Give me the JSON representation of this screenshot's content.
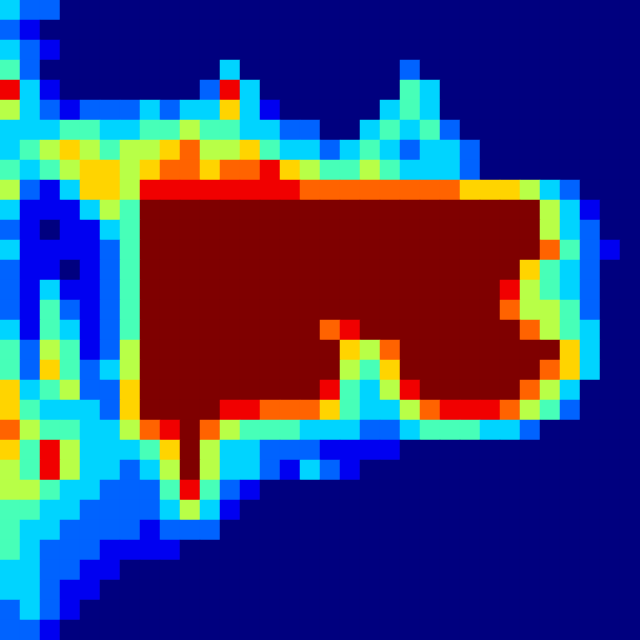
{
  "chart_data": {
    "type": "heatmap",
    "tick_labels": false,
    "color_range": [
      0,
      9
    ],
    "cells": [
      [
        3,
        2,
        2,
        0,
        0,
        0,
        0,
        0,
        0,
        0,
        0,
        0,
        0,
        0,
        0,
        0,
        0,
        0,
        0,
        0,
        0,
        0,
        0,
        0,
        0,
        0,
        0,
        0,
        0,
        0,
        0,
        0
      ],
      [
        2,
        1,
        0,
        0,
        0,
        0,
        0,
        0,
        0,
        0,
        0,
        0,
        0,
        0,
        0,
        0,
        0,
        0,
        0,
        0,
        0,
        0,
        0,
        0,
        0,
        0,
        0,
        0,
        0,
        0,
        0,
        0
      ],
      [
        3,
        2,
        1,
        0,
        0,
        0,
        0,
        0,
        0,
        0,
        0,
        0,
        0,
        0,
        0,
        0,
        0,
        0,
        0,
        0,
        0,
        0,
        0,
        0,
        0,
        0,
        0,
        0,
        0,
        0,
        0,
        0
      ],
      [
        4,
        2,
        0,
        0,
        0,
        0,
        0,
        0,
        0,
        0,
        0,
        3,
        0,
        0,
        0,
        0,
        0,
        0,
        0,
        0,
        2,
        0,
        0,
        0,
        0,
        0,
        0,
        0,
        0,
        0,
        0,
        0
      ],
      [
        8,
        3,
        1,
        0,
        0,
        0,
        0,
        0,
        0,
        0,
        2,
        8,
        3,
        0,
        0,
        0,
        0,
        0,
        0,
        0,
        4,
        3,
        0,
        0,
        0,
        0,
        0,
        0,
        0,
        0,
        0,
        0
      ],
      [
        5,
        3,
        2,
        1,
        2,
        2,
        2,
        3,
        2,
        3,
        3,
        6,
        3,
        1,
        0,
        0,
        0,
        0,
        0,
        3,
        4,
        3,
        0,
        0,
        0,
        0,
        0,
        0,
        0,
        0,
        0,
        0
      ],
      [
        3,
        3,
        3,
        4,
        4,
        3,
        3,
        4,
        4,
        5,
        4,
        4,
        3,
        3,
        2,
        2,
        0,
        0,
        3,
        4,
        3,
        4,
        2,
        0,
        0,
        0,
        0,
        0,
        0,
        0,
        0,
        0
      ],
      [
        3,
        4,
        5,
        6,
        5,
        4,
        5,
        5,
        6,
        7,
        5,
        5,
        6,
        4,
        3,
        3,
        2,
        3,
        4,
        3,
        2,
        3,
        3,
        2,
        0,
        0,
        0,
        0,
        0,
        0,
        0,
        0
      ],
      [
        4,
        3,
        4,
        5,
        6,
        6,
        5,
        6,
        7,
        7,
        6,
        7,
        7,
        8,
        6,
        5,
        4,
        4,
        5,
        4,
        3,
        3,
        3,
        2,
        0,
        0,
        0,
        0,
        0,
        0,
        0,
        0
      ],
      [
        5,
        2,
        1,
        3,
        6,
        6,
        5,
        8,
        8,
        8,
        8,
        8,
        8,
        8,
        8,
        7,
        7,
        7,
        7,
        7,
        7,
        7,
        7,
        6,
        6,
        6,
        5,
        3,
        2,
        0,
        0,
        0
      ],
      [
        3,
        1,
        1,
        1,
        3,
        5,
        4,
        9,
        9,
        9,
        9,
        9,
        9,
        9,
        9,
        9,
        9,
        9,
        9,
        9,
        9,
        9,
        9,
        9,
        9,
        9,
        9,
        5,
        3,
        1,
        0,
        0
      ],
      [
        2,
        1,
        0,
        1,
        1,
        3,
        4,
        9,
        9,
        9,
        9,
        9,
        9,
        9,
        9,
        9,
        9,
        9,
        9,
        9,
        9,
        9,
        9,
        9,
        9,
        9,
        9,
        5,
        3,
        2,
        0,
        0
      ],
      [
        3,
        1,
        1,
        1,
        1,
        2,
        4,
        9,
        9,
        9,
        9,
        9,
        9,
        9,
        9,
        9,
        9,
        9,
        9,
        9,
        9,
        9,
        9,
        9,
        9,
        9,
        9,
        7,
        4,
        2,
        1,
        0
      ],
      [
        2,
        1,
        1,
        0,
        1,
        2,
        4,
        9,
        9,
        9,
        9,
        9,
        9,
        9,
        9,
        9,
        9,
        9,
        9,
        9,
        9,
        9,
        9,
        9,
        9,
        9,
        6,
        4,
        3,
        2,
        0,
        0
      ],
      [
        2,
        1,
        3,
        1,
        1,
        2,
        4,
        9,
        9,
        9,
        9,
        9,
        9,
        9,
        9,
        9,
        9,
        9,
        9,
        9,
        9,
        9,
        9,
        9,
        9,
        8,
        5,
        4,
        3,
        2,
        0,
        0
      ],
      [
        2,
        1,
        4,
        2,
        1,
        2,
        4,
        9,
        9,
        9,
        9,
        9,
        9,
        9,
        9,
        9,
        9,
        9,
        9,
        9,
        9,
        9,
        9,
        9,
        9,
        7,
        5,
        5,
        4,
        2,
        0,
        0
      ],
      [
        3,
        1,
        4,
        3,
        1,
        2,
        4,
        9,
        9,
        9,
        9,
        9,
        9,
        9,
        9,
        9,
        7,
        8,
        9,
        9,
        9,
        9,
        9,
        9,
        9,
        9,
        7,
        5,
        4,
        3,
        0,
        0
      ],
      [
        4,
        2,
        5,
        4,
        1,
        2,
        5,
        9,
        9,
        9,
        9,
        9,
        9,
        9,
        9,
        9,
        9,
        6,
        5,
        7,
        9,
        9,
        9,
        9,
        9,
        9,
        9,
        9,
        6,
        3,
        0,
        0
      ],
      [
        4,
        2,
        6,
        4,
        2,
        3,
        5,
        9,
        9,
        9,
        9,
        9,
        9,
        9,
        9,
        9,
        9,
        5,
        4,
        6,
        9,
        9,
        9,
        9,
        9,
        9,
        9,
        7,
        6,
        3,
        0,
        0
      ],
      [
        6,
        3,
        4,
        5,
        2,
        2,
        6,
        9,
        9,
        9,
        9,
        9,
        9,
        9,
        9,
        9,
        8,
        4,
        3,
        5,
        8,
        9,
        9,
        9,
        9,
        9,
        7,
        5,
        3,
        0,
        0,
        0
      ],
      [
        6,
        4,
        3,
        3,
        3,
        2,
        6,
        9,
        9,
        9,
        9,
        8,
        8,
        7,
        7,
        7,
        6,
        4,
        3,
        3,
        5,
        7,
        8,
        8,
        8,
        7,
        5,
        4,
        2,
        0,
        0,
        0
      ],
      [
        7,
        5,
        4,
        4,
        3,
        3,
        5,
        7,
        8,
        9,
        7,
        5,
        4,
        4,
        4,
        3,
        3,
        3,
        2,
        2,
        3,
        4,
        4,
        4,
        3,
        3,
        2,
        0,
        0,
        0,
        0,
        0
      ],
      [
        6,
        4,
        8,
        5,
        3,
        3,
        3,
        4,
        6,
        9,
        5,
        3,
        3,
        2,
        2,
        2,
        1,
        1,
        1,
        1,
        0,
        0,
        0,
        0,
        0,
        0,
        0,
        0,
        0,
        0,
        0,
        0
      ],
      [
        5,
        4,
        8,
        5,
        3,
        3,
        2,
        3,
        5,
        9,
        5,
        3,
        3,
        2,
        1,
        3,
        2,
        1,
        0,
        0,
        0,
        0,
        0,
        0,
        0,
        0,
        0,
        0,
        0,
        0,
        0,
        0
      ],
      [
        5,
        5,
        4,
        3,
        3,
        2,
        2,
        2,
        4,
        8,
        4,
        2,
        1,
        0,
        0,
        0,
        0,
        0,
        0,
        0,
        0,
        0,
        0,
        0,
        0,
        0,
        0,
        0,
        0,
        0,
        0,
        0
      ],
      [
        4,
        4,
        3,
        3,
        2,
        2,
        2,
        2,
        3,
        5,
        3,
        1,
        0,
        0,
        0,
        0,
        0,
        0,
        0,
        0,
        0,
        0,
        0,
        0,
        0,
        0,
        0,
        0,
        0,
        0,
        0,
        0
      ],
      [
        4,
        3,
        3,
        2,
        2,
        2,
        2,
        1,
        2,
        2,
        2,
        0,
        0,
        0,
        0,
        0,
        0,
        0,
        0,
        0,
        0,
        0,
        0,
        0,
        0,
        0,
        0,
        0,
        0,
        0,
        0,
        0
      ],
      [
        4,
        3,
        2,
        2,
        2,
        1,
        1,
        1,
        1,
        0,
        0,
        0,
        0,
        0,
        0,
        0,
        0,
        0,
        0,
        0,
        0,
        0,
        0,
        0,
        0,
        0,
        0,
        0,
        0,
        0,
        0,
        0
      ],
      [
        3,
        3,
        2,
        2,
        1,
        1,
        0,
        0,
        0,
        0,
        0,
        0,
        0,
        0,
        0,
        0,
        0,
        0,
        0,
        0,
        0,
        0,
        0,
        0,
        0,
        0,
        0,
        0,
        0,
        0,
        0,
        0
      ],
      [
        3,
        3,
        2,
        1,
        1,
        0,
        0,
        0,
        0,
        0,
        0,
        0,
        0,
        0,
        0,
        0,
        0,
        0,
        0,
        0,
        0,
        0,
        0,
        0,
        0,
        0,
        0,
        0,
        0,
        0,
        0,
        0
      ],
      [
        2,
        3,
        2,
        1,
        0,
        0,
        0,
        0,
        0,
        0,
        0,
        0,
        0,
        0,
        0,
        0,
        0,
        0,
        0,
        0,
        0,
        0,
        0,
        0,
        0,
        0,
        0,
        0,
        0,
        0,
        0,
        0
      ],
      [
        2,
        2,
        1,
        0,
        0,
        0,
        0,
        0,
        0,
        0,
        0,
        0,
        0,
        0,
        0,
        0,
        0,
        0,
        0,
        0,
        0,
        0,
        0,
        0,
        0,
        0,
        0,
        0,
        0,
        0,
        0,
        0
      ]
    ]
  }
}
